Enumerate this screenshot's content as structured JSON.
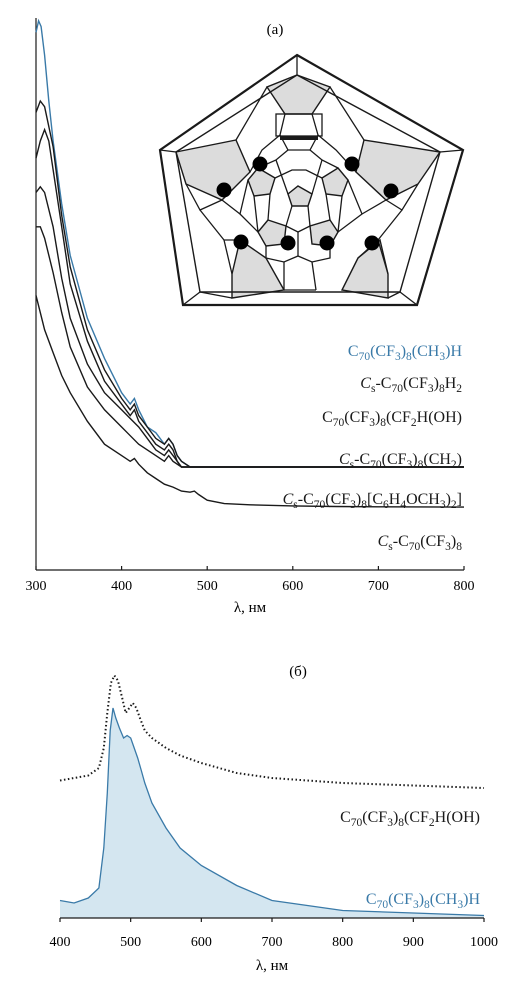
{
  "panel_a": {
    "label": "(а)",
    "xlabel": "λ, нм",
    "ticks": [
      "300",
      "400",
      "500",
      "600",
      "700",
      "800"
    ],
    "labels": [
      {
        "parts": [
          [
            "C",
            ""
          ],
          [
            "70",
            "sub"
          ],
          [
            "(CF",
            ""
          ],
          [
            "3",
            "sub"
          ],
          [
            ")",
            ""
          ],
          [
            "8",
            "sub"
          ],
          [
            "(CH",
            ""
          ],
          [
            "3",
            "sub"
          ],
          [
            ")H",
            ""
          ]
        ]
      },
      {
        "parts": [
          [
            "C",
            "it"
          ],
          [
            "s",
            "sub"
          ],
          [
            "-C",
            ""
          ],
          [
            "70",
            "sub"
          ],
          [
            "(CF",
            ""
          ],
          [
            "3",
            "sub"
          ],
          [
            ")",
            ""
          ],
          [
            "8",
            "sub"
          ],
          [
            "H",
            ""
          ],
          [
            "2",
            "sub"
          ]
        ]
      },
      {
        "parts": [
          [
            "C",
            ""
          ],
          [
            "70",
            "sub"
          ],
          [
            "(CF",
            ""
          ],
          [
            "3",
            "sub"
          ],
          [
            ")",
            ""
          ],
          [
            "8",
            "sub"
          ],
          [
            "(CF",
            ""
          ],
          [
            "2",
            "sub"
          ],
          [
            "H(OH)",
            ""
          ]
        ]
      },
      {
        "parts": [
          [
            "C",
            "it"
          ],
          [
            "s",
            "sub"
          ],
          [
            "-C",
            ""
          ],
          [
            "70",
            "sub"
          ],
          [
            "(CF",
            ""
          ],
          [
            "3",
            "sub"
          ],
          [
            ")",
            ""
          ],
          [
            "8",
            "sub"
          ],
          [
            "(CH",
            ""
          ],
          [
            "2",
            "sub"
          ],
          [
            ")",
            ""
          ]
        ]
      },
      {
        "parts": [
          [
            "C",
            "it"
          ],
          [
            "s",
            "sub"
          ],
          [
            "-C",
            ""
          ],
          [
            "70",
            "sub"
          ],
          [
            "(CF",
            ""
          ],
          [
            "3",
            "sub"
          ],
          [
            ")",
            ""
          ],
          [
            "8",
            "sub"
          ],
          [
            "[C",
            ""
          ],
          [
            "6",
            "sub"
          ],
          [
            "H",
            ""
          ],
          [
            "4",
            "sub"
          ],
          [
            "OCH",
            ""
          ],
          [
            "3",
            "sub"
          ],
          [
            ")",
            ""
          ],
          [
            "2",
            "sub"
          ],
          [
            "]",
            ""
          ]
        ]
      },
      {
        "parts": [
          [
            "C",
            "it"
          ],
          [
            "s",
            "sub"
          ],
          [
            "-C",
            ""
          ],
          [
            "70",
            "sub"
          ],
          [
            "(CF",
            ""
          ],
          [
            "3",
            "sub"
          ],
          [
            ")",
            ""
          ],
          [
            "8",
            "sub"
          ]
        ]
      }
    ]
  },
  "panel_b": {
    "label": "(б)",
    "xlabel": "λ, нм",
    "ticks": [
      "400",
      "500",
      "600",
      "700",
      "800",
      "900",
      "1000"
    ],
    "labels": [
      {
        "parts": [
          [
            "C",
            ""
          ],
          [
            "70",
            "sub"
          ],
          [
            "(CF",
            ""
          ],
          [
            "3",
            "sub"
          ],
          [
            ")",
            ""
          ],
          [
            "8",
            "sub"
          ],
          [
            "(CF",
            ""
          ],
          [
            "2",
            "sub"
          ],
          [
            "H(OH)",
            ""
          ]
        ]
      },
      {
        "parts": [
          [
            "C",
            ""
          ],
          [
            "70",
            "sub"
          ],
          [
            "(CF",
            ""
          ],
          [
            "3",
            "sub"
          ],
          [
            ")",
            ""
          ],
          [
            "8",
            "sub"
          ],
          [
            "(CH",
            ""
          ],
          [
            "3",
            "sub"
          ],
          [
            ")H",
            ""
          ]
        ]
      }
    ]
  },
  "colors": {
    "blue": "#3a7aa8",
    "black": "#1a1a1a",
    "fill": "#d4e6f0",
    "grey": "#dcdcdc"
  },
  "chart_data": [
    {
      "type": "line",
      "xlabel": "λ, нм",
      "xlim": [
        300,
        800
      ],
      "y_axis": "none (offset absorption spectra)",
      "series": [
        {
          "name": "C70(CF3)8(CH3)H",
          "color": "#3a7aa8",
          "x": [
            300,
            303,
            306,
            310,
            315,
            320,
            330,
            340,
            360,
            380,
            400,
            410,
            415,
            420,
            430,
            440,
            450,
            455,
            460,
            465,
            470,
            480,
            490,
            500,
            550,
            600,
            650,
            700,
            800
          ],
          "y": [
            94,
            96,
            95,
            90,
            82,
            75,
            64,
            55,
            44,
            37,
            31,
            29,
            30,
            28,
            25,
            24,
            22,
            23,
            22,
            20,
            19,
            18,
            18,
            18,
            18,
            18,
            18,
            18,
            18
          ]
        },
        {
          "name": "Cs-C70(CF3)8H2",
          "x": [
            300,
            305,
            310,
            320,
            330,
            340,
            360,
            380,
            400,
            410,
            415,
            420,
            430,
            440,
            450,
            455,
            460,
            465,
            470,
            480,
            500,
            600,
            700,
            800
          ],
          "y": [
            80,
            82,
            81,
            74,
            62,
            53,
            42,
            35,
            30,
            28,
            29,
            27,
            25,
            23,
            22,
            23,
            22,
            20,
            19,
            18,
            18,
            18,
            18,
            18
          ]
        },
        {
          "name": "C70(CF3)8(CF2)H(OH)",
          "x": [
            300,
            305,
            310,
            315,
            320,
            330,
            340,
            360,
            380,
            400,
            410,
            415,
            420,
            430,
            440,
            450,
            455,
            460,
            465,
            470,
            480,
            500,
            600,
            700,
            800
          ],
          "y": [
            72,
            75,
            77,
            75,
            70,
            60,
            50,
            40,
            33,
            29,
            27,
            28,
            26,
            24,
            22,
            21,
            22,
            21,
            19,
            18,
            18,
            18,
            18,
            18,
            18
          ]
        },
        {
          "name": "Cs-C70(CF3)8(CH2)",
          "x": [
            300,
            305,
            310,
            320,
            330,
            340,
            360,
            380,
            400,
            420,
            430,
            440,
            450,
            455,
            460,
            470,
            480,
            500,
            600,
            700,
            800
          ],
          "y": [
            66,
            67,
            66,
            60,
            51,
            44,
            36,
            31,
            28,
            25,
            23,
            21,
            20,
            21,
            20,
            18,
            18,
            18,
            18,
            18,
            18
          ]
        },
        {
          "name": "Cs-C70(CF3)8[C6H4OCH3]2",
          "x": [
            300,
            305,
            310,
            320,
            330,
            340,
            360,
            380,
            400,
            420,
            440,
            450,
            455,
            460,
            470,
            480,
            500,
            600,
            700,
            800
          ],
          "y": [
            60,
            60,
            58,
            52,
            45,
            39,
            32,
            28,
            25,
            22,
            20,
            19,
            20,
            19,
            18,
            18,
            18,
            18,
            18,
            18
          ]
        },
        {
          "name": "Cs-C70(CF3)8",
          "x": [
            300,
            305,
            310,
            320,
            330,
            340,
            360,
            380,
            400,
            410,
            415,
            420,
            430,
            440,
            450,
            460,
            470,
            480,
            485,
            490,
            500,
            520,
            550,
            600,
            650,
            700,
            800
          ],
          "y": [
            48,
            45,
            42,
            38,
            34,
            31,
            26,
            22,
            20,
            19,
            19.5,
            18.5,
            17,
            16,
            15,
            14.5,
            13.8,
            13.6,
            13.8,
            13.2,
            12.2,
            11.6,
            11.4,
            11.2,
            11.1,
            11.05,
            11
          ]
        }
      ]
    },
    {
      "type": "area",
      "xlabel": "λ, нм",
      "xlim": [
        400,
        1000
      ],
      "y_axis": "none (emission spectra)",
      "series": [
        {
          "name": "C70(CF3)8(CF2)H(OH)",
          "style": "dotted",
          "x": [
            400,
            440,
            455,
            462,
            467,
            472,
            477,
            482,
            488,
            493,
            498,
            503,
            508,
            513,
            520,
            530,
            550,
            570,
            600,
            650,
            700,
            800,
            900,
            1000
          ],
          "y": [
            0.55,
            0.57,
            0.6,
            0.68,
            0.82,
            0.94,
            0.97,
            0.95,
            0.88,
            0.82,
            0.84,
            0.86,
            0.84,
            0.8,
            0.75,
            0.72,
            0.68,
            0.65,
            0.62,
            0.58,
            0.56,
            0.54,
            0.53,
            0.52
          ]
        },
        {
          "name": "C70(CF3)8(CH3)H",
          "style": "filled",
          "x": [
            400,
            420,
            440,
            455,
            462,
            467,
            471,
            475,
            479,
            484,
            490,
            495,
            500,
            505,
            510,
            515,
            520,
            530,
            550,
            570,
            600,
            650,
            700,
            800,
            900,
            1000
          ],
          "y": [
            0.07,
            0.06,
            0.08,
            0.12,
            0.28,
            0.5,
            0.75,
            0.84,
            0.8,
            0.76,
            0.72,
            0.73,
            0.72,
            0.68,
            0.64,
            0.59,
            0.54,
            0.46,
            0.36,
            0.28,
            0.21,
            0.13,
            0.07,
            0.03,
            0.02,
            0.01
          ]
        }
      ]
    }
  ]
}
